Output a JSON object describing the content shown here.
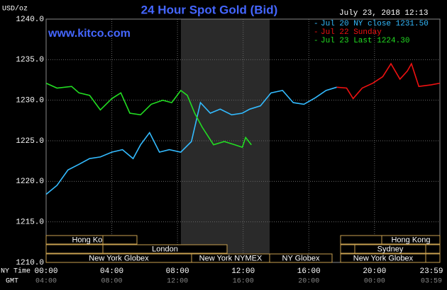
{
  "chart_data": {
    "type": "line",
    "title": "24 Hour Spot Gold (Bid)",
    "unit_label": "USD/oz",
    "watermark": "www.kitco.com",
    "timestamp": "July 23, 2018 12:13",
    "x_row_labels": [
      "NY Time",
      "GMT"
    ],
    "xlim": [
      0,
      23.983
    ],
    "xticks": [
      {
        "value": 0,
        "label": "00:00"
      },
      {
        "value": 4,
        "label": "04:00"
      },
      {
        "value": 8,
        "label": "08:00"
      },
      {
        "value": 12,
        "label": "12:00"
      },
      {
        "value": 16,
        "label": "16:00"
      },
      {
        "value": 20,
        "label": "20:00"
      },
      {
        "value": 23.983,
        "label": "23:59"
      }
    ],
    "gmt_tick_labels": [
      "04:00",
      "08:00",
      "12:00",
      "16:00",
      "20:00",
      "00:00",
      "03:59"
    ],
    "ylim": [
      1210,
      1240
    ],
    "yticks": [
      {
        "value": 1210,
        "label": "1210.0"
      },
      {
        "value": 1215,
        "label": "1215.0"
      },
      {
        "value": 1220,
        "label": "1220.0"
      },
      {
        "value": 1225,
        "label": "1225.0"
      },
      {
        "value": 1230,
        "label": "1230.0"
      },
      {
        "value": 1235,
        "label": "1235.0"
      },
      {
        "value": 1240,
        "label": "1240.0"
      }
    ],
    "grid": true,
    "sessions": [
      "Hong Kong",
      "London",
      "New York Globex",
      "New York NYMEX",
      "NY Globex",
      "Hong Kong",
      "Sydney",
      "New York Globex"
    ],
    "series": [
      {
        "name": "Jul 20 NY close 1231.50",
        "color": "#33bbff",
        "x": [
          0,
          0.66,
          1.33,
          2,
          2.65,
          3.3,
          4,
          4.65,
          5.3,
          5.75,
          6.3,
          6.9,
          7.5,
          8.2,
          8.85,
          9.4,
          10,
          10.6,
          11.3,
          11.95,
          12.4,
          13.05,
          13.7,
          14.4,
          15.05,
          15.7,
          16.4,
          17.05,
          17.7
        ],
        "values": [
          1218.4,
          1219.5,
          1221.4,
          1222.1,
          1222.8,
          1223.0,
          1223.6,
          1223.9,
          1222.8,
          1224.5,
          1226.0,
          1223.6,
          1223.9,
          1223.6,
          1224.9,
          1229.7,
          1228.4,
          1228.9,
          1228.2,
          1228.4,
          1228.9,
          1229.3,
          1230.9,
          1231.2,
          1229.7,
          1229.5,
          1230.3,
          1231.2,
          1231.6
        ]
      },
      {
        "name": "Jul 22 Sunday",
        "color": "#ee1111",
        "x": [
          17.7,
          18.3,
          18.7,
          19.25,
          19.9,
          20.5,
          21.0,
          21.55,
          22.0,
          22.25,
          22.7,
          23.45,
          23.98
        ],
        "values": [
          1231.6,
          1231.5,
          1230.2,
          1231.5,
          1232.1,
          1232.9,
          1234.5,
          1232.6,
          1233.6,
          1234.5,
          1231.7,
          1231.9,
          1232.1
        ]
      },
      {
        "name": "Jul 23 Last 1224.30",
        "color": "#22dd22",
        "x": [
          0,
          0.66,
          1.55,
          2,
          2.65,
          3.3,
          4,
          4.55,
          5.1,
          5.75,
          6.4,
          7.1,
          7.65,
          8.2,
          8.6,
          9.05,
          9.5,
          10.2,
          10.85,
          11.5,
          11.95,
          12.15,
          12.5
        ],
        "values": [
          1232.1,
          1231.5,
          1231.7,
          1230.9,
          1230.6,
          1228.8,
          1230.2,
          1230.9,
          1228.4,
          1228.2,
          1229.5,
          1230.0,
          1229.7,
          1231.2,
          1230.6,
          1228.4,
          1226.7,
          1224.5,
          1224.9,
          1224.5,
          1224.2,
          1225.4,
          1224.5
        ]
      }
    ]
  }
}
